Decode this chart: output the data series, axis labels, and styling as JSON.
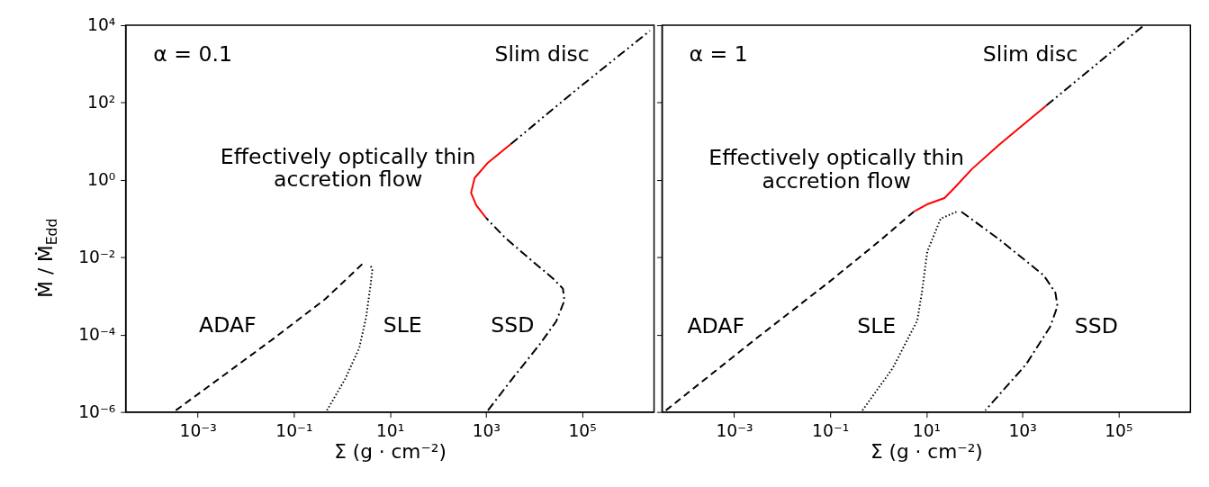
{
  "chart_data": [
    {
      "type": "line",
      "log": "xy",
      "grid": false,
      "xlabel": "Σ (g · cm⁻²)",
      "ylabel": "Ṁ / Ṁ$_{Edd}$",
      "xlim": [
        3.16e-05,
        3160000.0
      ],
      "ylim": [
        1e-06,
        10000.0
      ],
      "xticks": [
        {
          "value": 0.001,
          "label": "10⁻³"
        },
        {
          "value": 0.1,
          "label": "10⁻¹"
        },
        {
          "value": 10,
          "label": "10¹"
        },
        {
          "value": 1000,
          "label": "10³"
        },
        {
          "value": 100000,
          "label": "10⁵"
        }
      ],
      "yticks": [
        {
          "value": 1e-06,
          "label": "10⁻⁶"
        },
        {
          "value": 0.0001,
          "label": "10⁻⁴"
        },
        {
          "value": 0.01,
          "label": "10⁻²"
        },
        {
          "value": 1,
          "label": "10⁰"
        },
        {
          "value": 100,
          "label": "10²"
        },
        {
          "value": 10000,
          "label": "10⁴"
        }
      ],
      "series": [
        {
          "color": "#000000",
          "line_style": "dashed",
          "x": [
            0.00035,
            0.0034,
            0.039,
            0.45,
            1.66,
            2.7
          ],
          "values": [
            1.1e-06,
            8.7e-06,
            8.1e-05,
            0.00083,
            0.0038,
            0.0068
          ]
        },
        {
          "color": "#000000",
          "line_style": "dotted",
          "x": [
            0.49,
            1.17,
            2.3,
            3.2,
            4.0,
            4.3,
            3.9
          ],
          "values": [
            1.1e-06,
            7.1e-06,
            4.5e-05,
            0.00028,
            0.0021,
            0.0047,
            0.0065
          ]
        },
        {
          "color": "#000000",
          "line_style": "dashdot",
          "x": [
            1100,
            3500,
            13000,
            29000,
            43000,
            40000,
            25000,
            7800,
            2500,
            1000
          ],
          "values": [
            1.1e-06,
            7.1e-06,
            5.5e-05,
            0.00022,
            0.00076,
            0.00155,
            0.0028,
            0.0095,
            0.032,
            0.105
          ]
        },
        {
          "color": "#ff0000",
          "line_style": "solid",
          "x": [
            1000,
            630,
            490,
            580,
            1100,
            3300
          ],
          "values": [
            0.105,
            0.22,
            0.46,
            1.12,
            2.8,
            8.5
          ]
        },
        {
          "color": "#000000",
          "line_style": "dashdotdot",
          "x": [
            3300,
            89000,
            2600000
          ],
          "values": [
            8.5,
            250,
            7200
          ]
        }
      ],
      "annotations": [
        "α = 0.1",
        "Slim disc",
        "Effectively optically thin\naccretion flow",
        "ADAF",
        "SLE",
        "SSD"
      ]
    },
    {
      "type": "line",
      "log": "xy",
      "grid": false,
      "xlabel": "Σ (g · cm⁻²)",
      "tick_labels": "x",
      "xlim": [
        3.16e-05,
        3160000.0
      ],
      "ylim": [
        1e-06,
        10000.0
      ],
      "xticks": [
        {
          "value": 0.001,
          "label": "10⁻³"
        },
        {
          "value": 0.1,
          "label": "10⁻¹"
        },
        {
          "value": 10,
          "label": "10¹"
        },
        {
          "value": 1000,
          "label": "10³"
        },
        {
          "value": 100000,
          "label": "10⁵"
        }
      ],
      "yticks": [
        {
          "value": 1e-06,
          "label": null
        },
        {
          "value": 0.0001,
          "label": null
        },
        {
          "value": 0.01,
          "label": null
        },
        {
          "value": 1,
          "label": null
        },
        {
          "value": 100,
          "label": null
        },
        {
          "value": 10000,
          "label": null
        }
      ],
      "series": [
        {
          "color": "#000000",
          "line_style": "dashed",
          "x": [
            3.8e-05,
            0.0034,
            0.091,
            1.05,
            5.5
          ],
          "values": [
            1.1e-06,
            9.3e-05,
            0.0022,
            0.026,
            0.15
          ]
        },
        {
          "color": "#000000",
          "line_style": "dotted",
          "x": [
            0.47,
            2.0,
            6.5,
            8.1,
            10.5,
            20,
            43
          ],
          "values": [
            1.1e-06,
            1.35e-05,
            0.00023,
            0.0012,
            0.014,
            0.1,
            0.15
          ]
        },
        {
          "color": "#000000",
          "line_style": "dashdot",
          "x": [
            54,
            330,
            2800,
            4900,
            5400,
            3800,
            1200,
            170
          ],
          "values": [
            0.15,
            0.029,
            0.0034,
            0.0012,
            0.00054,
            0.00016,
            1.7e-05,
            1.1e-06
          ]
        },
        {
          "color": "#ff0000",
          "line_style": "solid",
          "x": [
            5.5,
            11,
            24,
            39,
            89,
            330,
            3200
          ],
          "values": [
            0.15,
            0.24,
            0.34,
            0.63,
            1.9,
            8.1,
            85
          ]
        },
        {
          "color": "#000000",
          "line_style": "dashdotdot",
          "x": [
            3200,
            32000,
            320000
          ],
          "values": [
            85,
            890,
            9300
          ]
        }
      ],
      "annotations": [
        "α = 1",
        "Slim disc",
        "Effectively optically thin\naccretion flow",
        "ADAF",
        "SLE",
        "SSD"
      ]
    }
  ]
}
